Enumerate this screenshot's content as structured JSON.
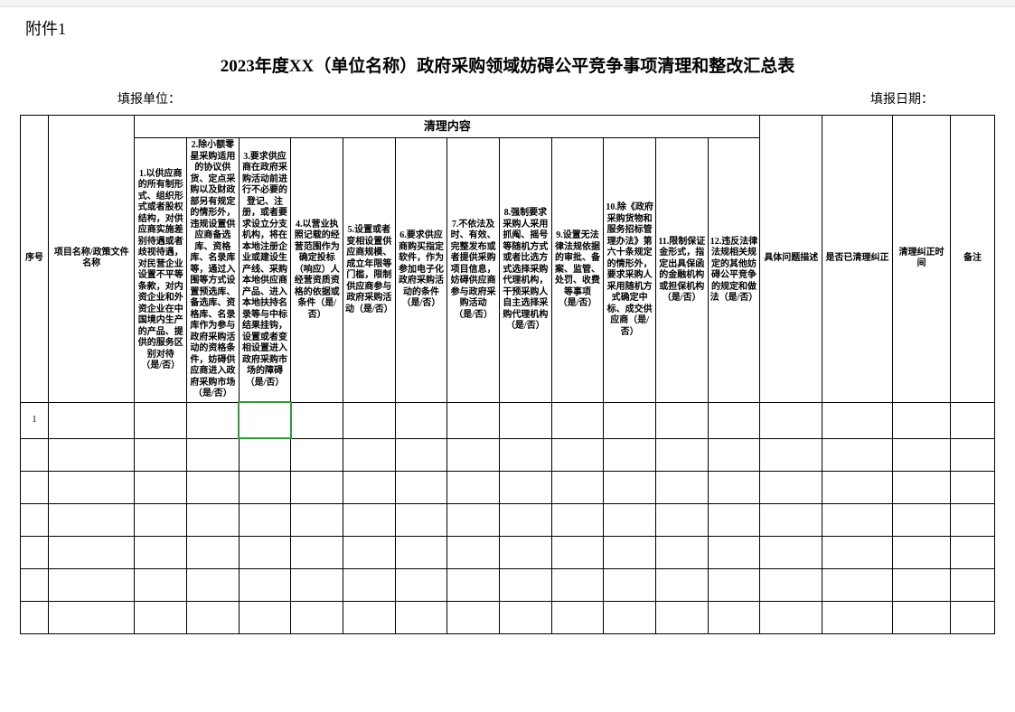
{
  "attachment_label": "附件1",
  "title": "2023年度XX（单位名称）政府采购领域妨碍公平竞争事项清理和整改汇总表",
  "meta": {
    "filler_unit_label": "填报单位：",
    "fill_date_label": "填报日期："
  },
  "group_header": "清理内容",
  "headers": {
    "seq": "序号",
    "project": "项目名称/政策文件名称",
    "c1": "1.以供应商的所有制形式、组织形式或者股权结构，对供应商实施差别待遇或者歧视待遇，对民营企业设置不平等条款，对内资企业和外资企业在中国境内生产的产品、提供的服务区别对待（是/否）",
    "c2": "2.除小额零星采购适用的协议供货、定点采购以及财政部另有规定的情形外，违规设置供应商备选库、资格库、名录库等，通过入围等方式设置预选库、备选库、资格库、名录库作为参与政府采购活动的资格条件，妨碍供应商进入政府采购市场（是/否）",
    "c3": "3.要求供应商在政府采购活动前进行不必要的登记、注册，或者要求设立分支机构，将在本地注册企业或建设生产线、采购本地供应商产品、进入本地扶持名录等与中标结果挂钩，设置或者变相设置进入政府采购市场的障碍（是/否）",
    "c4": "4.以营业执照记载的经营范围作为确定投标（响应）人经营资质资格的依据或条件（是/否）",
    "c5": "5.设置或者变相设置供应商规模、成立年限等门槛，限制供应商参与政府采购活动（是/否）",
    "c6": "6.要求供应商购买指定软件，作为参加电子化政府采购活动的条件（是/否）",
    "c7": "7.不依法及时、有效、完整发布或者提供采购项目信息，妨碍供应商参与政府采购活动（是/否）",
    "c8": "8.强制要求采购人采用抓阄、摇号等随机方式或者比选方式选择采购代理机构，干预采购人自主选择采购代理机构（是/否）",
    "c9": "9.设置无法律法规依据的审批、备案、监管、处罚、收费等事项（是/否）",
    "c10": "10.除《政府采购货物和服务招标管理办法》第六十条规定的情形外，要求采购人采用随机方式确定中标、成交供应商（是/否）",
    "c11": "11.限制保证金形式，指定出具保函的金融机构或担保机构（是/否）",
    "c12": "12.违反法律法规相关规定的其他妨碍公平竞争的规定和做法（是/否）",
    "desc": "具体问题描述",
    "rectified": "是否已清理纠正",
    "rect_time": "清理纠正时间",
    "note": "备注"
  },
  "rows": [
    {
      "seq": "1"
    },
    {
      "seq": ""
    },
    {
      "seq": ""
    },
    {
      "seq": ""
    },
    {
      "seq": ""
    },
    {
      "seq": ""
    },
    {
      "seq": ""
    }
  ],
  "style": {
    "border_color": "#000000",
    "active_cell_border": "#2e9b3a",
    "background": "#ffffff",
    "title_fontsize": 19,
    "header_fontsize": 10
  }
}
